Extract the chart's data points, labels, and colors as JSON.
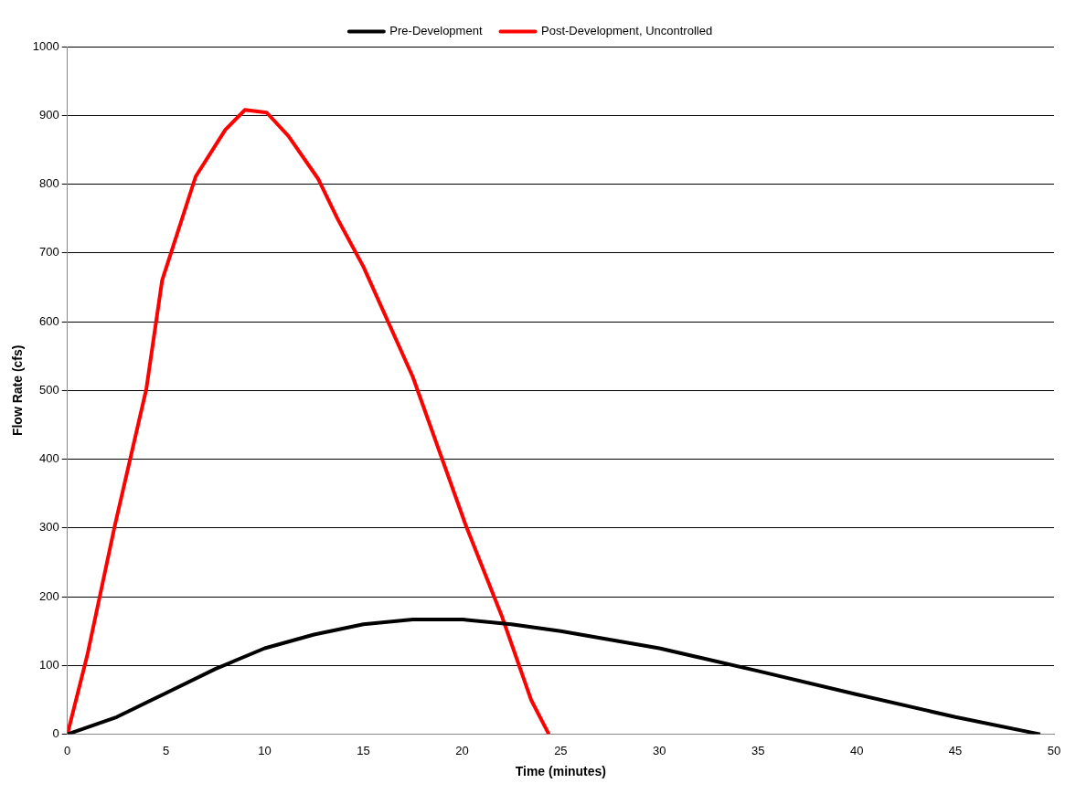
{
  "chart_data": {
    "type": "line",
    "xlabel": "Time (minutes)",
    "ylabel": "Flow Rate (cfs)",
    "xlim": [
      0,
      50
    ],
    "xticks": [
      0,
      5,
      10,
      15,
      20,
      25,
      30,
      35,
      40,
      45,
      50
    ],
    "ylim": [
      0,
      1000
    ],
    "yticks": [
      0,
      100,
      200,
      300,
      400,
      500,
      600,
      700,
      800,
      900,
      1000
    ],
    "grid": "y",
    "legend": "top",
    "marker": "none",
    "line_style": "solid",
    "series": [
      {
        "name": "Pre-Development",
        "color": "#000000",
        "x": [
          0,
          2.5,
          5,
          7.5,
          10,
          12.5,
          15,
          17.5,
          20,
          22.5,
          25,
          30,
          35,
          40,
          45,
          49.3
        ],
        "values": [
          0,
          25,
          60,
          95,
          125,
          145,
          160,
          167,
          167,
          160,
          150,
          125,
          92,
          58,
          25,
          0
        ]
      },
      {
        "name": "Post-Development, Uncontrolled",
        "color": "#ff0000",
        "x": [
          0,
          1,
          2.4,
          4,
          4.8,
          6.5,
          8,
          9,
          10.1,
          11.2,
          12.7,
          13.7,
          15,
          17.5,
          20.2,
          22,
          23.5,
          24.4
        ],
        "values": [
          0,
          114,
          303,
          502,
          660,
          811,
          879,
          908,
          904,
          870,
          808,
          749,
          680,
          520,
          303,
          173,
          50,
          0
        ]
      }
    ]
  }
}
